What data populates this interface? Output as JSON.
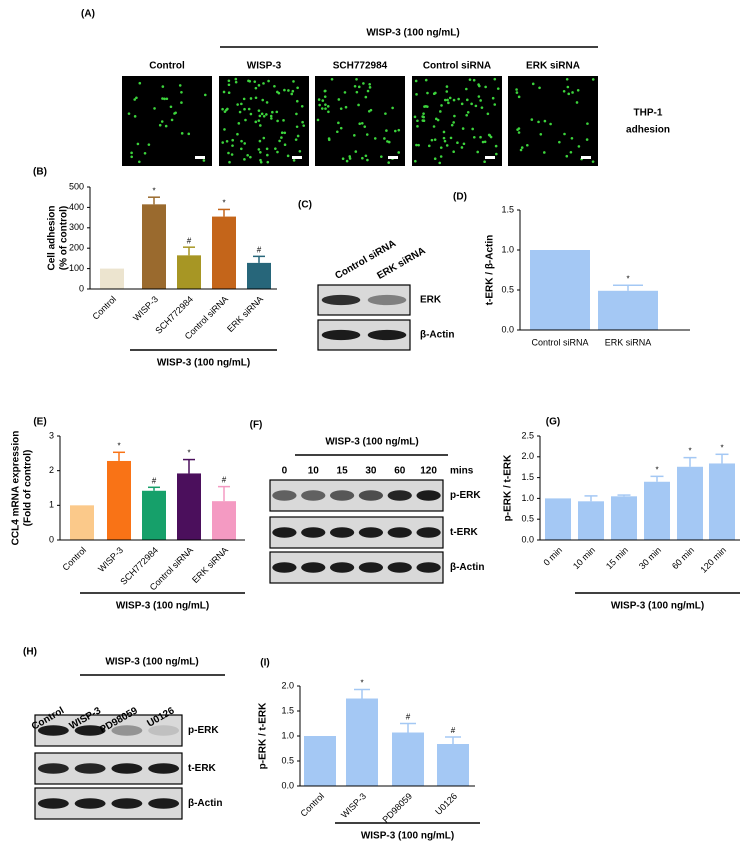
{
  "panel_a": {
    "label": "(A)",
    "treatment": "WISP-3 (100 ng/mL)",
    "images": [
      "Control",
      "WISP-3",
      "SCH772984",
      "Control siRNA",
      "ERK siRNA"
    ],
    "side_label": [
      "THP-1",
      "adhesion"
    ]
  },
  "chart_data": [
    {
      "type": "bar",
      "label": "(B)",
      "y_label": [
        "Cell adhesion",
        "(% of control)"
      ],
      "categories": [
        "Control",
        "WISP-3",
        "SCH772984",
        "Control siRNA",
        "ERK siRNA"
      ],
      "values": [
        100,
        415,
        165,
        355,
        128
      ],
      "errors": [
        null,
        35,
        40,
        35,
        32
      ],
      "colors": [
        "#ece4cf",
        "#9a6a2e",
        "#a79624",
        "#c4651a",
        "#27667a"
      ],
      "annotations": [
        null,
        "*",
        "#",
        "*",
        "#"
      ],
      "group_label": "WISP-3 (100 ng/mL)",
      "ylim": [
        0,
        500
      ],
      "yticks": [
        0,
        100,
        200,
        300,
        400,
        500
      ]
    },
    {
      "type": "bar",
      "label": "(D)",
      "y_label": [
        "t-ERK / β-Actin"
      ],
      "categories": [
        "Control siRNA",
        "ERK siRNA"
      ],
      "values": [
        1.0,
        0.49
      ],
      "errors": [
        null,
        0.07
      ],
      "colors": [
        "#a4c8f4",
        "#a4c8f4"
      ],
      "annotations": [
        null,
        "*"
      ],
      "ylim": [
        0,
        1.5
      ],
      "yticks": [
        {
          "value": 0,
          "label": "0.0"
        },
        0.5,
        {
          "value": 1,
          "label": "1.0"
        },
        1.5
      ]
    },
    {
      "type": "bar",
      "label": "(E)",
      "y_label": [
        "CCL4 mRNA expression",
        "(Fold of control)"
      ],
      "categories": [
        "Control",
        "WISP-3",
        "SCH772984",
        "Control siRNA",
        "ERK siRNA"
      ],
      "values": [
        1,
        2.28,
        1.42,
        1.92,
        1.12
      ],
      "errors": [
        null,
        0.25,
        0.1,
        0.4,
        0.42
      ],
      "colors": [
        "#fbc98a",
        "#f97316",
        "#16a06a",
        "#4b0f5c",
        "#f49ac2"
      ],
      "annotations": [
        null,
        "*",
        "#",
        "*",
        "#"
      ],
      "group_label": "WISP-3 (100 ng/mL)",
      "ylim": [
        0,
        3
      ],
      "yticks": [
        0,
        1,
        2,
        3
      ]
    },
    {
      "type": "bar",
      "label": "(G)",
      "y_label": [
        "p-ERK / t-ERK"
      ],
      "categories": [
        "0 min",
        "10 min",
        "15 min",
        "30 min",
        "60 min",
        "120 min"
      ],
      "values": [
        1.0,
        0.93,
        1.05,
        1.4,
        1.76,
        1.84
      ],
      "errors": [
        null,
        0.13,
        0.03,
        0.13,
        0.22,
        0.22
      ],
      "colors": [
        "#a4c8f4",
        "#a4c8f4",
        "#a4c8f4",
        "#a4c8f4",
        "#a4c8f4",
        "#a4c8f4"
      ],
      "annotations": [
        null,
        null,
        null,
        "*",
        "*",
        "*"
      ],
      "group_label": "WISP-3 (100 ng/mL)",
      "ylim": [
        0,
        2.5
      ],
      "yticks": [
        {
          "value": 0,
          "label": "0.0"
        },
        0.5,
        {
          "value": 1,
          "label": "1.0"
        },
        1.5,
        {
          "value": 2,
          "label": "2.0"
        },
        2.5
      ]
    },
    {
      "type": "bar",
      "label": "(I)",
      "y_label": [
        "p-ERK / t-ERK"
      ],
      "categories": [
        "Control",
        "WISP-3",
        "PD98059",
        "U0126"
      ],
      "values": [
        1.0,
        1.75,
        1.07,
        0.84
      ],
      "errors": [
        null,
        0.18,
        0.18,
        0.14
      ],
      "colors": [
        "#a4c8f4",
        "#a4c8f4",
        "#a4c8f4",
        "#a4c8f4"
      ],
      "annotations": [
        null,
        "*",
        "#",
        "#"
      ],
      "group_label": "WISP-3 (100 ng/mL)",
      "ylim": [
        0,
        2
      ],
      "yticks": [
        {
          "value": 0,
          "label": "0.0"
        },
        0.5,
        {
          "value": 1,
          "label": "1.0"
        },
        1.5,
        {
          "value": 2,
          "label": "2.0"
        }
      ]
    }
  ],
  "panel_c": {
    "label": "(C)",
    "lanes": [
      "Control siRNA",
      "ERK siRNA"
    ],
    "bands": [
      "ERK",
      "β-Actin"
    ]
  },
  "panel_f": {
    "label": "(F)",
    "treatment": "WISP-3 (100 ng/mL)",
    "lanes": [
      "0",
      "10",
      "15",
      "30",
      "60",
      "120"
    ],
    "unit": "mins",
    "bands": [
      "p-ERK",
      "t-ERK",
      "β-Actin"
    ]
  },
  "panel_h": {
    "label": "(H)",
    "treatment": "WISP-3 (100 ng/mL)",
    "lanes": [
      "Control",
      "WISP-3",
      "PD98059",
      "U0126"
    ],
    "bands": [
      "p-ERK",
      "t-ERK",
      "β-Actin"
    ]
  }
}
